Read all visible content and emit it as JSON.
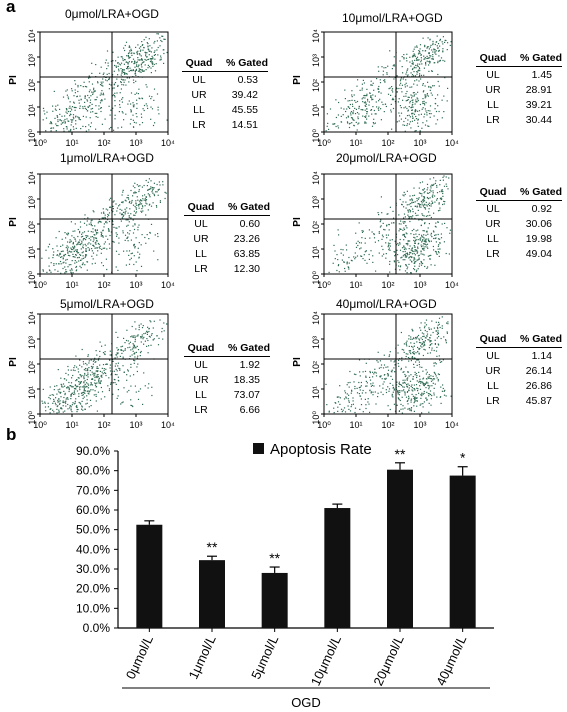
{
  "panel_a_label": "a",
  "panel_b_label": "b",
  "flow_axes": {
    "y_label": "PI",
    "x_ticks": [
      "10⁰",
      "10¹",
      "10²",
      "10³",
      "10⁴"
    ],
    "y_ticks": [
      "10⁰",
      "10¹",
      "10²",
      "10³",
      "10⁴"
    ]
  },
  "table_header": {
    "quad": "Quad",
    "gated": "% Gated"
  },
  "flow_plots": [
    {
      "title": "0μmol/LRA+OGD",
      "rows": [
        {
          "q": "UL",
          "v": "0.53"
        },
        {
          "q": "UR",
          "v": "39.42"
        },
        {
          "q": "LL",
          "v": "45.55"
        },
        {
          "q": "LR",
          "v": "14.51"
        }
      ]
    },
    {
      "title": "10μmol/LRA+OGD",
      "rows": [
        {
          "q": "UL",
          "v": "1.45"
        },
        {
          "q": "UR",
          "v": "28.91"
        },
        {
          "q": "LL",
          "v": "39.21"
        },
        {
          "q": "LR",
          "v": "30.44"
        }
      ]
    },
    {
      "title": "1μmol/LRA+OGD",
      "rows": [
        {
          "q": "UL",
          "v": "0.60"
        },
        {
          "q": "UR",
          "v": "23.26"
        },
        {
          "q": "LL",
          "v": "63.85"
        },
        {
          "q": "LR",
          "v": "12.30"
        }
      ]
    },
    {
      "title": "20μmol/LRA+OGD",
      "rows": [
        {
          "q": "UL",
          "v": "0.92"
        },
        {
          "q": "UR",
          "v": "30.06"
        },
        {
          "q": "LL",
          "v": "19.98"
        },
        {
          "q": "LR",
          "v": "49.04"
        }
      ]
    },
    {
      "title": "5μmol/LRA+OGD",
      "rows": [
        {
          "q": "UL",
          "v": "1.92"
        },
        {
          "q": "UR",
          "v": "18.35"
        },
        {
          "q": "LL",
          "v": "73.07"
        },
        {
          "q": "LR",
          "v": "6.66"
        }
      ]
    },
    {
      "title": "40μmol/LRA+OGD",
      "rows": [
        {
          "q": "UL",
          "v": "1.14"
        },
        {
          "q": "UR",
          "v": "26.14"
        },
        {
          "q": "LL",
          "v": "26.86"
        },
        {
          "q": "LR",
          "v": "45.87"
        }
      ]
    }
  ],
  "colors": {
    "dot": "#2f6b52",
    "bar": "#111111",
    "axis": "#000000"
  },
  "chart_data": {
    "type": "bar",
    "categories": [
      "0μmol/L",
      "1μmol/L",
      "5μmol/L",
      "10μmol/L",
      "20μmol/L",
      "40μmol/L"
    ],
    "series": [
      {
        "name": "Apoptosis Rate",
        "values": [
          52.5,
          34.5,
          28.0,
          61.0,
          80.5,
          77.5
        ],
        "errors": [
          2.0,
          2.0,
          3.0,
          2.0,
          3.5,
          4.5
        ]
      }
    ],
    "significance": [
      "",
      "**",
      "**",
      "",
      "**",
      "*"
    ],
    "ylim": [
      0,
      90
    ],
    "y_ticks": [
      "0.0%",
      "10.0%",
      "20.0%",
      "30.0%",
      "40.0%",
      "50.0%",
      "60.0%",
      "70.0%",
      "80.0%",
      "90.0%"
    ],
    "group_label": "OGD",
    "legend_position": "top-center",
    "grid": false
  }
}
